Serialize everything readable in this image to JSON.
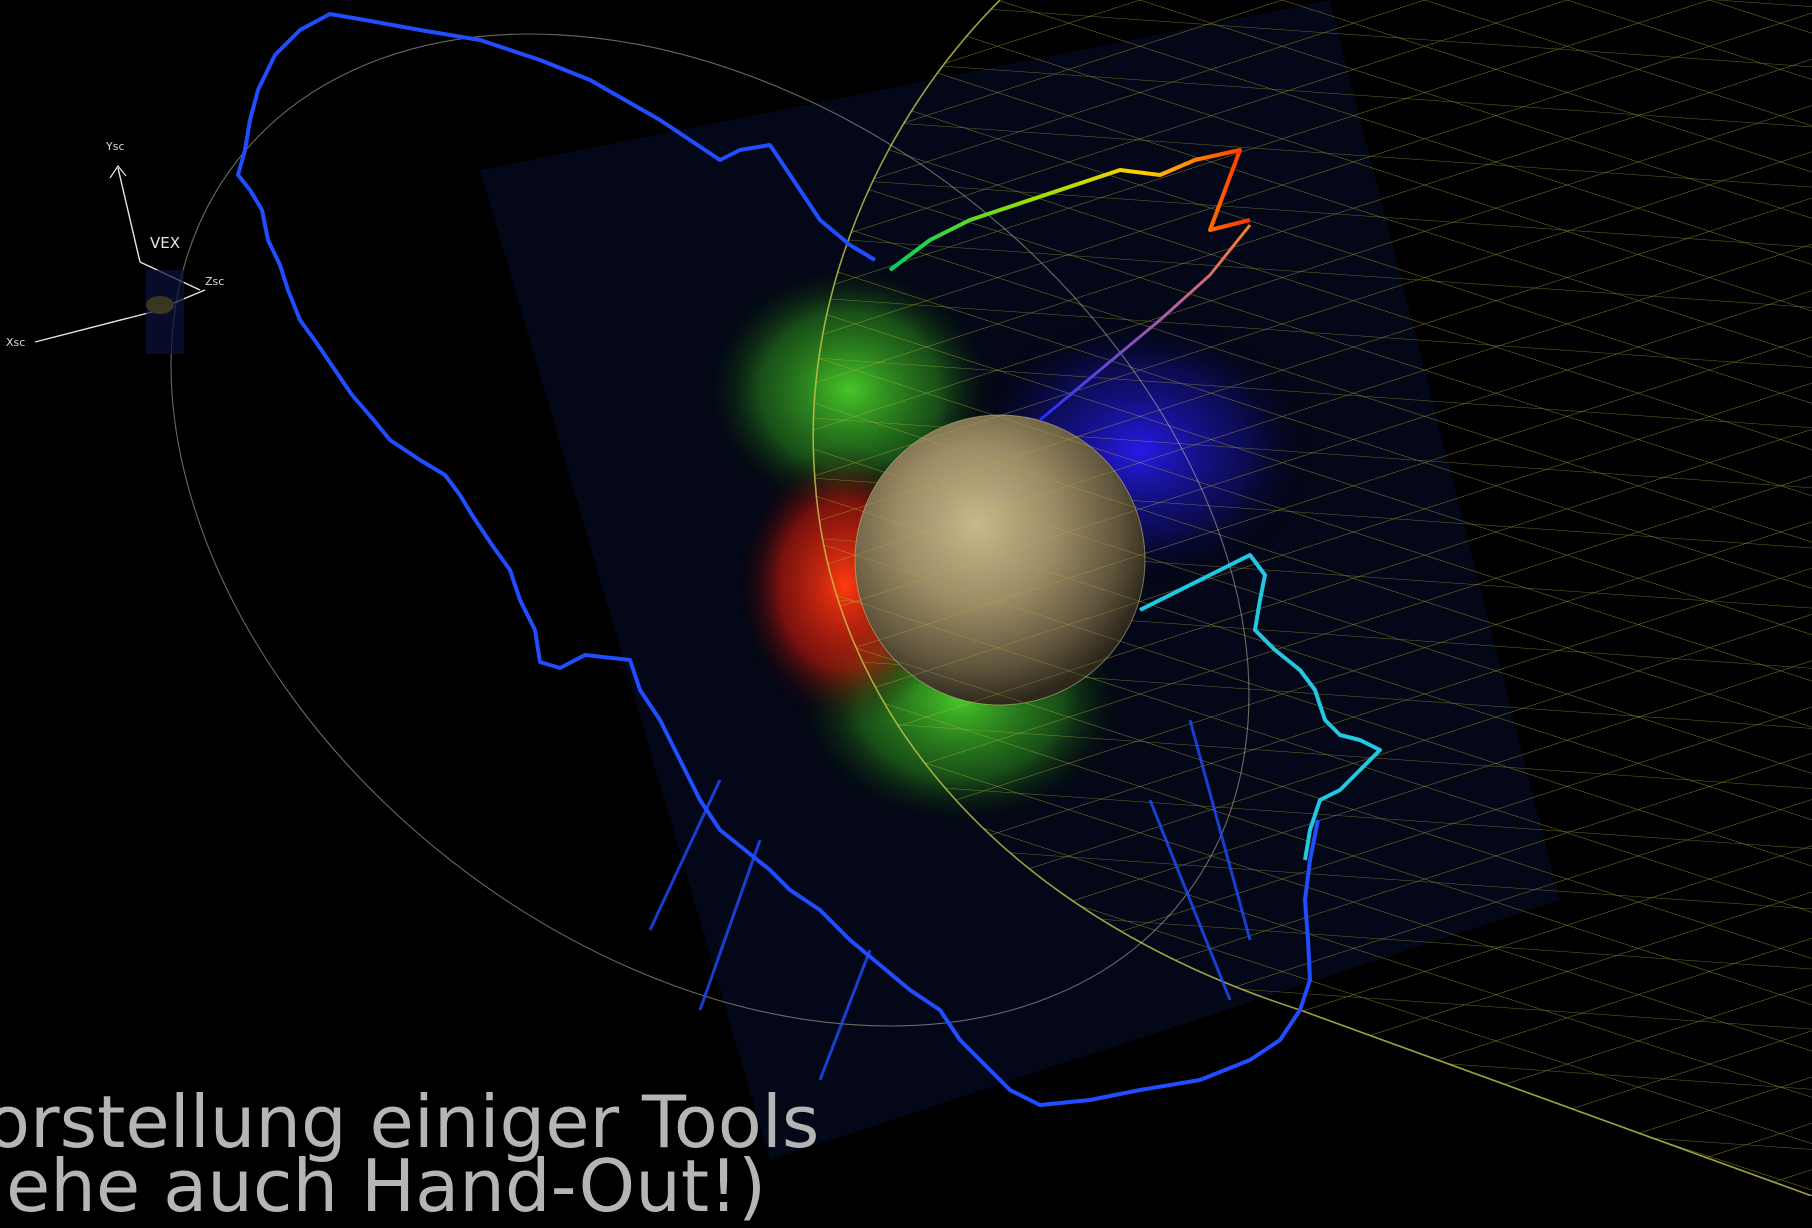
{
  "spacecraft": {
    "name": "VEX"
  },
  "axes": {
    "y": "Ysc",
    "z": "Zsc",
    "x": "Xsc"
  },
  "caption": {
    "line1": "orstellung einiger Tools",
    "line2": "iehe auch Hand-Out!)"
  },
  "colors": {
    "background": "#000000",
    "grid": "#b8b83a",
    "orbit": "#bfbfa0",
    "trace_blue": "#1f4dff",
    "caption": "#b5b5b5"
  }
}
